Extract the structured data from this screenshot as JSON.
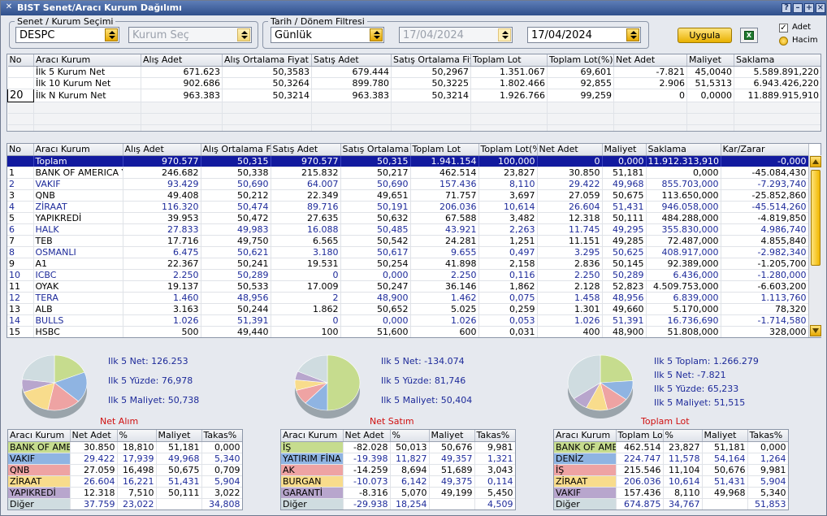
{
  "window": {
    "title": "BIST Senet/Aracı Kurum Dağılımı"
  },
  "filters": {
    "senet_group_label": "Senet / Kurum Seçimi",
    "senet_value": "DESPC",
    "kurum_placeholder": "Kurum Seç",
    "tarih_group_label": "Tarih / Dönem Filtresi",
    "period_value": "Günlük",
    "start_date": "17/04/2024",
    "end_date": "17/04/2024",
    "apply_label": "Uygula",
    "excel_icon_text": "X",
    "opt_adet": "Adet",
    "opt_hacim": "Hacim",
    "check_mark": "✓"
  },
  "summary": {
    "columns": [
      "No",
      "Aracı Kurum",
      "Alış Adet",
      "Alış Ortalama Fiyat",
      "Satış Adet",
      "Satış Ortalama Fiyat",
      "Toplam Lot",
      "Toplam Lot(%)",
      "Net Adet",
      "Maliyet",
      "Saklama"
    ],
    "rows": [
      [
        "",
        "İlk 5 Kurum Net",
        "671.623",
        "50,3583",
        "679.444",
        "50,2967",
        "1.351.067",
        "69,601",
        "-7.821",
        "45,0040",
        "5.589.891,220"
      ],
      [
        "",
        "İlk 10 Kurum Net",
        "902.686",
        "50,3264",
        "899.780",
        "50,3225",
        "1.802.466",
        "92,855",
        "2.906",
        "51,5313",
        "6.943.426,220"
      ],
      [
        "20",
        "İlk N Kurum Net",
        "963.383",
        "50,3214",
        "963.383",
        "50,3214",
        "1.926.766",
        "99,259",
        "0",
        "0,0000",
        "11.889.915,910"
      ]
    ]
  },
  "brokers": {
    "columns": [
      "No",
      "Aracı Kurum",
      "Alış Adet",
      "Alış Ortalama Fiy",
      "Satış Adet",
      "Satış Ortalama Fi",
      "Toplam Lot",
      "Toplam Lot(%",
      "Net Adet",
      "Maliyet",
      "Saklama",
      "Kar/Zarar"
    ],
    "rows": [
      [
        "",
        "Toplam",
        "970.577",
        "50,315",
        "970.577",
        "50,315",
        "1.941.154",
        "100,000",
        "0",
        "0,000",
        "11.912.313,910",
        "-0,000"
      ],
      [
        "1",
        "BANK OF AMERICA Y",
        "246.682",
        "50,338",
        "215.832",
        "50,217",
        "462.514",
        "23,827",
        "30.850",
        "51,181",
        "0,000",
        "-45.084,430"
      ],
      [
        "2",
        "VAKIF",
        "93.429",
        "50,690",
        "64.007",
        "50,690",
        "157.436",
        "8,110",
        "29.422",
        "49,968",
        "855.703,000",
        "-7.293,740"
      ],
      [
        "3",
        "QNB",
        "49.408",
        "50,212",
        "22.349",
        "49,651",
        "71.757",
        "3,697",
        "27.059",
        "50,675",
        "113.650,000",
        "-25.852,860"
      ],
      [
        "4",
        "ZİRAAT",
        "116.320",
        "50,474",
        "89.716",
        "50,191",
        "206.036",
        "10,614",
        "26.604",
        "51,431",
        "946.058,000",
        "-45.514,260"
      ],
      [
        "5",
        "YAPIKREDİ",
        "39.953",
        "50,472",
        "27.635",
        "50,632",
        "67.588",
        "3,482",
        "12.318",
        "50,111",
        "484.288,000",
        "-4.819,850"
      ],
      [
        "6",
        "HALK",
        "27.833",
        "49,983",
        "16.088",
        "50,485",
        "43.921",
        "2,263",
        "11.745",
        "49,295",
        "355.830,000",
        "4.986,740"
      ],
      [
        "7",
        "TEB",
        "17.716",
        "49,750",
        "6.565",
        "50,542",
        "24.281",
        "1,251",
        "11.151",
        "49,285",
        "72.487,000",
        "4.855,840"
      ],
      [
        "8",
        "OSMANLI",
        "6.475",
        "50,621",
        "3.180",
        "50,617",
        "9.655",
        "0,497",
        "3.295",
        "50,625",
        "408.917,000",
        "-2.982,340"
      ],
      [
        "9",
        "A1",
        "22.367",
        "50,241",
        "19.531",
        "50,254",
        "41.898",
        "2,158",
        "2.836",
        "50,145",
        "92.389,000",
        "-1.205,700"
      ],
      [
        "10",
        "ICBC",
        "2.250",
        "50,289",
        "0",
        "0,000",
        "2.250",
        "0,116",
        "2.250",
        "50,289",
        "6.436,000",
        "-1.280,000"
      ],
      [
        "11",
        "OYAK",
        "19.137",
        "50,533",
        "17.009",
        "50,247",
        "36.146",
        "1,862",
        "2.128",
        "52,823",
        "4.509.753,000",
        "-6.603,200"
      ],
      [
        "12",
        "TERA",
        "1.460",
        "48,956",
        "2",
        "48,900",
        "1.462",
        "0,075",
        "1.458",
        "48,956",
        "6.839,000",
        "1.113,760"
      ],
      [
        "13",
        "ALB",
        "3.163",
        "50,244",
        "1.862",
        "50,652",
        "5.025",
        "0,259",
        "1.301",
        "49,660",
        "5.170,000",
        "78,320"
      ],
      [
        "14",
        "BULLS",
        "1.026",
        "51,391",
        "0",
        "0,000",
        "1.026",
        "0,053",
        "1.026",
        "51,391",
        "16.736,690",
        "-1.714,580"
      ],
      [
        "15",
        "HSBC",
        "500",
        "49,440",
        "100",
        "51,600",
        "600",
        "0,031",
        "400",
        "48,900",
        "51.808,000",
        "328,000"
      ]
    ]
  },
  "panels": [
    {
      "title": "Net Alım",
      "stats": [
        "Ilk 5 Net: 126.253",
        "Ilk 5 Yüzde: 76,978",
        "Ilk 5 Maliyet: 50,738"
      ],
      "columns": [
        "Aracı Kurum",
        "Net Adet",
        "%",
        "Maliyet",
        "Takas%"
      ],
      "rows": [
        [
          "BANK OF AME",
          "30.850",
          "18,810",
          "51,181",
          "0,000"
        ],
        [
          "VAKIF",
          "29.422",
          "17,939",
          "49,968",
          "5,340"
        ],
        [
          "QNB",
          "27.059",
          "16,498",
          "50,675",
          "0,709"
        ],
        [
          "ZİRAAT",
          "26.604",
          "16,221",
          "51,431",
          "5,904"
        ],
        [
          "YAPIKREDİ",
          "12.318",
          "7,510",
          "50,111",
          "3,022"
        ],
        [
          "Diğer",
          "37.759",
          "23,022",
          "",
          "34,808"
        ]
      ],
      "slices": [
        18.81,
        17.939,
        16.498,
        16.221,
        7.51,
        23.022
      ]
    },
    {
      "title": "Net Satım",
      "stats": [
        "Ilk 5 Net: -134.074",
        "Ilk 5 Yüzde: 81,746",
        "Ilk 5 Maliyet: 50,404"
      ],
      "columns": [
        "Aracı Kurum",
        "Net Adet",
        "%",
        "Maliyet",
        "Takas%"
      ],
      "rows": [
        [
          "İŞ",
          "-82.028",
          "50,013",
          "50,676",
          "9,981"
        ],
        [
          "YATIRIM FİNA",
          "-19.398",
          "11,827",
          "49,357",
          "1,321"
        ],
        [
          "AK",
          "-14.259",
          "8,694",
          "51,689",
          "3,043"
        ],
        [
          "BURGAN",
          "-10.073",
          "6,142",
          "49,375",
          "0,114"
        ],
        [
          "GARANTİ",
          "-8.316",
          "5,070",
          "49,199",
          "5,450"
        ],
        [
          "Diğer",
          "-29.938",
          "18,254",
          "",
          "4,509"
        ]
      ],
      "slices": [
        50.013,
        11.827,
        8.694,
        6.142,
        5.07,
        18.254
      ]
    },
    {
      "title": "Toplam Lot",
      "stats": [
        "Ilk 5 Toplam: 1.266.279",
        "Ilk 5 Net: -7.821",
        "Ilk 5 Yüzde: 65,233",
        "Ilk 5 Maliyet: 51,515"
      ],
      "columns": [
        "Aracı Kurum",
        "Toplam Lot",
        "%",
        "Maliyet",
        "Takas%"
      ],
      "rows": [
        [
          "BANK OF AME",
          "462.514",
          "23,827",
          "51,181",
          "0,000"
        ],
        [
          "DENİZ",
          "224.747",
          "11,578",
          "54,164",
          "1,264"
        ],
        [
          "İŞ",
          "215.546",
          "11,104",
          "50,676",
          "9,981"
        ],
        [
          "ZİRAAT",
          "206.036",
          "10,614",
          "51,431",
          "5,904"
        ],
        [
          "VAKIF",
          "157.436",
          "8,110",
          "49,968",
          "5,340"
        ],
        [
          "Diğer",
          "674.875",
          "34,767",
          "",
          "51,853"
        ]
      ],
      "slices": [
        23.827,
        11.578,
        11.104,
        10.614,
        8.11,
        34.767
      ]
    }
  ],
  "colors": {
    "slice_colors": [
      "#c6dc8e",
      "#8fb4e2",
      "#eea3a3",
      "#f8dc8c",
      "#b8a6cd",
      "#cfdce0"
    ],
    "slice_dark": [
      "#8ea55a",
      "#5d80ae",
      "#b36e6e",
      "#c2a356",
      "#83729a",
      "#93a2a6"
    ]
  }
}
